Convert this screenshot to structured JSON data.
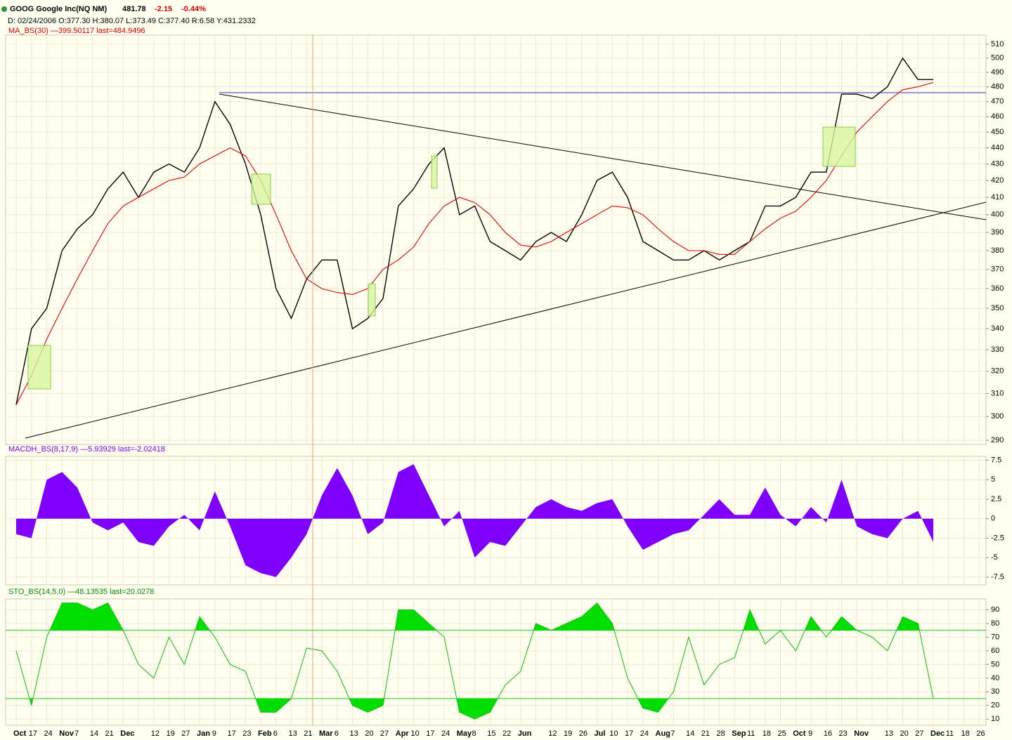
{
  "header": {
    "symbol": "GOOG Google Inc(NQ NM)",
    "last": "481.78",
    "change": "-2.15",
    "change_pct": "-0.44%",
    "info": "D: 02/24/2006 O:377.30 H:380.07 L:373.49 C:377.40 R:6.58 Y:431.2332"
  },
  "chart_data": [
    {
      "type": "line",
      "log": true,
      "ylim": [
        288.3,
        516.7
      ],
      "yticks": [
        290,
        300,
        310,
        320,
        330,
        340,
        350,
        360,
        370,
        380,
        390,
        400,
        410,
        420,
        430,
        440,
        450,
        460,
        470,
        480,
        490,
        500,
        510
      ],
      "reference_lines": [
        476
      ],
      "reference_color": "#3030c0",
      "grid": true,
      "series": [
        {
          "color": "#000000",
          "values": [
            305,
            340,
            350,
            380,
            392,
            400,
            415,
            425,
            410,
            425,
            430,
            425,
            440,
            470,
            455,
            430,
            400,
            360,
            345,
            365,
            375,
            375,
            340,
            345,
            355,
            405,
            415,
            430,
            440,
            400,
            405,
            385,
            380,
            375,
            385,
            390,
            385,
            400,
            420,
            425,
            410,
            385,
            380,
            375,
            375,
            380,
            375,
            380,
            385,
            405,
            405,
            410,
            425,
            425,
            475,
            475,
            472,
            480,
            500,
            485,
            485,
            null,
            null,
            null
          ]
        },
        {
          "name": "MA_BS(30) —399.50117 last=484.9496",
          "color": "#e00000",
          "values": [
            305,
            318,
            335,
            350,
            365,
            380,
            395,
            405,
            410,
            415,
            420,
            422,
            430,
            435,
            440,
            435,
            420,
            400,
            380,
            365,
            360,
            358,
            357,
            360,
            370,
            375,
            382,
            395,
            405,
            410,
            407,
            400,
            390,
            383,
            382,
            385,
            390,
            395,
            400,
            405,
            404,
            400,
            392,
            385,
            380,
            380,
            378,
            378,
            385,
            392,
            398,
            402,
            410,
            420,
            435,
            450,
            460,
            470,
            478,
            480,
            483,
            null,
            null,
            null
          ]
        }
      ]
    },
    {
      "type": "area",
      "title": "MACDH_BS(8,17,9) —5.93929 last=-2.02418",
      "title_color": "#7f00ff",
      "ylim": [
        -8.5,
        8
      ],
      "yticks": [
        -7.5,
        -5,
        -2.5,
        0,
        2.5,
        5,
        7.5
      ],
      "color": "#7f00ff",
      "values": [
        -2,
        -2.5,
        5,
        6,
        4,
        -0.5,
        -1.5,
        -0.5,
        -3,
        -3.5,
        -1,
        0.5,
        -1.5,
        3.5,
        -1,
        -6,
        -7,
        -7.5,
        -5,
        -2,
        3,
        6.5,
        3,
        -2,
        -0.5,
        6,
        7,
        3,
        -1,
        1,
        -5,
        -3,
        -3.5,
        -1,
        1.5,
        2.5,
        1.5,
        1,
        2,
        2.5,
        -1,
        -4,
        -3,
        -2,
        -1.5,
        0.5,
        2.5,
        0.5,
        0.5,
        4,
        0.5,
        -1,
        1.5,
        -0.5,
        5,
        -1,
        -2,
        -2.5,
        0,
        1,
        -3,
        null,
        null,
        null
      ]
    },
    {
      "type": "line",
      "title": "STO_BS(14,5,0) —48.13535 last=20.0278",
      "title_color": "#009000",
      "ylim": [
        5.5,
        98
      ],
      "yticks": [
        10,
        20,
        30,
        40,
        50,
        60,
        70,
        80,
        90
      ],
      "reference_lines": [
        25,
        75
      ],
      "reference_color": "#20c020",
      "grid": true,
      "categories": [
        "Oct",
        "17",
        "24",
        "Nov",
        "7",
        "14",
        "21",
        "Dec",
        null,
        "12",
        "19",
        "27",
        "Jan",
        "9",
        "17",
        "23",
        "Feb",
        "6",
        "13",
        "21",
        "Mar",
        "6",
        "13",
        "20",
        "27",
        "Apr",
        "10",
        "17",
        "24",
        "May",
        "8",
        "15",
        "22",
        "Jun",
        null,
        "12",
        "19",
        "26",
        "Jul",
        "10",
        "17",
        "24",
        "Aug",
        "7",
        "14",
        "21",
        "28",
        "Sep",
        "11",
        "18",
        "25",
        "Oct",
        "9",
        "16",
        "23",
        "Nov",
        null,
        "13",
        "20",
        "27",
        "Dec",
        "11",
        "18",
        "26"
      ],
      "series": [
        {
          "color": "#20c020",
          "values": [
            60,
            20,
            70,
            95,
            95,
            90,
            95,
            75,
            50,
            40,
            70,
            50,
            85,
            70,
            50,
            45,
            15,
            15,
            25,
            62,
            60,
            45,
            20,
            15,
            20,
            90,
            90,
            80,
            70,
            15,
            10,
            15,
            35,
            45,
            80,
            75,
            80,
            85,
            95,
            80,
            40,
            18,
            15,
            30,
            70,
            35,
            50,
            55,
            90,
            65,
            75,
            60,
            85,
            70,
            85,
            75,
            70,
            60,
            85,
            80,
            25,
            null,
            null,
            null
          ]
        }
      ]
    }
  ]
}
